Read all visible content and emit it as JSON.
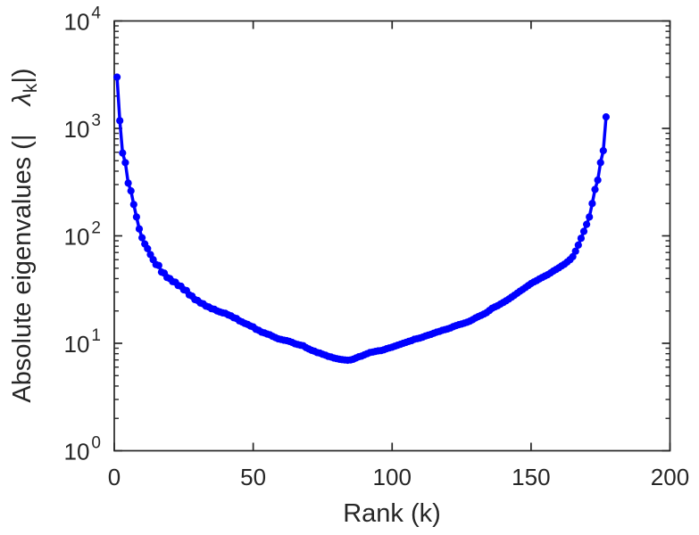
{
  "figure": {
    "background": "#ffffff"
  },
  "colors": {
    "line": "#0000ff",
    "marker_fill": "#0000ff",
    "axis": "#262626",
    "text": "#262626"
  },
  "chart_data": {
    "type": "line",
    "title": "",
    "xlabel": "Rank (k)",
    "ylabel": "Absolute eigenvalues (|    λk|)",
    "ylabel_parts": {
      "prefix": "Absolute eigenvalues (|",
      "gap": "    ",
      "symbol": "λ",
      "subscript": "k",
      "suffix": "|)"
    },
    "x_axis": {
      "min": 0,
      "max": 200,
      "ticks": [
        0,
        50,
        100,
        150,
        200
      ],
      "minor_ticks": false
    },
    "y_axis": {
      "scale": "log",
      "tick_base": "10",
      "tick_exponents": [
        0,
        1,
        2,
        3,
        4
      ],
      "min_exp": 0,
      "max_exp": 4,
      "minor_ticks": true
    },
    "grid": false,
    "marker": "filled-circle",
    "series": [
      {
        "name": "absolute-eigenvalues",
        "color": "#0000ff",
        "x_start": 1,
        "x_step": 1,
        "values": [
          3000,
          1180,
          590,
          480,
          310,
          262,
          196,
          150,
          116,
          96,
          84,
          76,
          67,
          60,
          54,
          53,
          46,
          45,
          41,
          40,
          37.5,
          37,
          34.5,
          34,
          31.5,
          31,
          28.2,
          27.5,
          25.5,
          25,
          23.7,
          23.3,
          22.2,
          21.8,
          21.0,
          20.7,
          20.0,
          19.6,
          19.2,
          19.0,
          18.4,
          18.0,
          17.3,
          17.0,
          16.2,
          15.8,
          15.3,
          15.0,
          14.5,
          14.2,
          13.5,
          13.2,
          12.7,
          12.5,
          12.2,
          12.0,
          11.6,
          11.3,
          11.0,
          10.85,
          10.7,
          10.6,
          10.4,
          10.2,
          9.9,
          9.75,
          9.6,
          9.5,
          9.1,
          8.85,
          8.6,
          8.45,
          8.2,
          8.1,
          7.9,
          7.75,
          7.55,
          7.45,
          7.3,
          7.2,
          7.1,
          7.05,
          7.0,
          6.95,
          7.0,
          7.1,
          7.3,
          7.5,
          7.6,
          7.8,
          8.0,
          8.2,
          8.3,
          8.4,
          8.5,
          8.55,
          8.7,
          8.9,
          9.05,
          9.2,
          9.4,
          9.6,
          9.8,
          10.0,
          10.2,
          10.4,
          10.6,
          10.9,
          11.05,
          11.2,
          11.4,
          11.7,
          11.9,
          12.1,
          12.4,
          12.7,
          12.9,
          13.2,
          13.4,
          13.6,
          13.9,
          14.3,
          14.6,
          14.9,
          15.1,
          15.4,
          15.7,
          16.1,
          16.6,
          17.2,
          17.7,
          18.2,
          18.7,
          19.3,
          20.2,
          21.2,
          21.8,
          22.4,
          23.2,
          24.0,
          24.9,
          25.8,
          26.9,
          28.0,
          29.2,
          30.5,
          31.7,
          33.0,
          34.5,
          36.0,
          37.2,
          38.3,
          39.7,
          41.0,
          42.2,
          43.5,
          45.2,
          47.0,
          48.7,
          50.5,
          52.5,
          54.5,
          57,
          60,
          64,
          72,
          82,
          95,
          110,
          128,
          150,
          200,
          270,
          330,
          480,
          620,
          1280
        ]
      }
    ]
  }
}
